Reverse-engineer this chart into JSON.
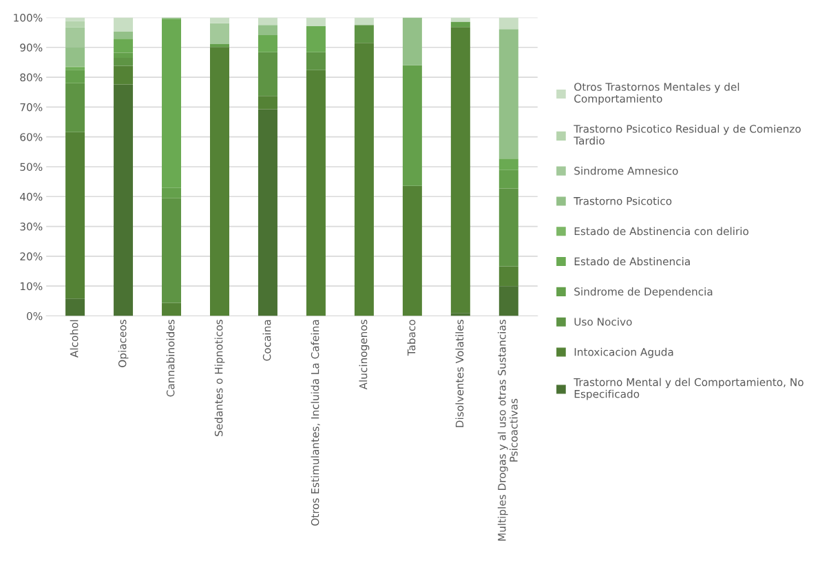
{
  "chart_data": {
    "type": "bar",
    "stacked": true,
    "grid": "y",
    "legend": "right",
    "categories": [
      "Alcohol",
      "Opiaceos",
      "Cannabinoides",
      "Sedantes o Hipnoticos",
      "Cocaina",
      "Otros Estimulantes, Incluida La Cafeina",
      "Alucinogenos",
      "Tabaco",
      "Disolventes Volatiles",
      "Multiples Drogas y al uso otras Sustancias Psicoactivas"
    ],
    "ylim": [
      0,
      100
    ],
    "yticks": [
      {
        "value": 0,
        "label": "0%"
      },
      {
        "value": 10,
        "label": "10%"
      },
      {
        "value": 20,
        "label": "20%"
      },
      {
        "value": 30,
        "label": "30%"
      },
      {
        "value": 40,
        "label": "40%"
      },
      {
        "value": 50,
        "label": "50%"
      },
      {
        "value": 60,
        "label": "60%"
      },
      {
        "value": 70,
        "label": "70%"
      },
      {
        "value": 80,
        "label": "80%"
      },
      {
        "value": 90,
        "label": "90%"
      },
      {
        "value": 100,
        "label": "100%"
      }
    ],
    "series": [
      {
        "name": "Trastorno Mental y del Comportamiento, No Especificado",
        "color": "#4a7233",
        "values": [
          5.8,
          77.6,
          0,
          0,
          69.3,
          0,
          0,
          0,
          1.0,
          10.0
        ]
      },
      {
        "name": "Intoxicacion Aguda",
        "color": "#548235",
        "values": [
          55.8,
          6.2,
          4.4,
          90.1,
          4.4,
          82.4,
          91.5,
          43.6,
          95.8,
          6.6
        ]
      },
      {
        "name": "Uso Nocivo",
        "color": "#5e9444",
        "values": [
          16.4,
          2.7,
          35.0,
          0,
          14.7,
          6.0,
          6.0,
          0,
          0,
          26.1
        ]
      },
      {
        "name": "Sindrome de Dependencia",
        "color": "#64a04b",
        "values": [
          4.4,
          1.7,
          3.5,
          1.0,
          0,
          0,
          0,
          40.4,
          1.8,
          6.2
        ]
      },
      {
        "name": "Estado de Abstinencia",
        "color": "#6aaa52",
        "values": [
          0.6,
          4.7,
          56.7,
          0,
          5.7,
          8.7,
          0,
          0,
          0,
          3.8
        ]
      },
      {
        "name": "Estado de Abstinencia con delirio",
        "color": "#7db766",
        "values": [
          0.6,
          0,
          0,
          0,
          0,
          0,
          0,
          0,
          0,
          0
        ]
      },
      {
        "name": "Trastorno Psicotico",
        "color": "#93c088",
        "values": [
          6.5,
          2.5,
          0.4,
          0,
          3.4,
          0,
          0,
          16.0,
          0,
          43.4
        ]
      },
      {
        "name": "Sindrome Amnesico",
        "color": "#a3c99a",
        "values": [
          6.6,
          0,
          0,
          7.0,
          0,
          0,
          0,
          0,
          0,
          0
        ]
      },
      {
        "name": "Trastorno Psicotico Residual y de Comienzo Tardio",
        "color": "#b5d4ad",
        "values": [
          2.1,
          0,
          0,
          0,
          0,
          0,
          0,
          0,
          0,
          0
        ]
      },
      {
        "name": "Otros Trastornos Mentales y del Comportamiento",
        "color": "#c8dec3",
        "values": [
          1.2,
          4.6,
          0,
          1.9,
          2.5,
          2.9,
          2.5,
          0,
          1.4,
          3.9
        ]
      }
    ]
  }
}
